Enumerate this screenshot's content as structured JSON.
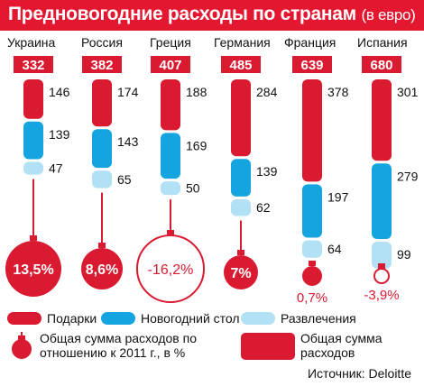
{
  "title": "Предновогодние расходы по странам",
  "subtitle": "(в евро)",
  "chart_data": {
    "type": "bar",
    "stacked": true,
    "categories": [
      "Украина",
      "Россия",
      "Греция",
      "Германия",
      "Франция",
      "Испания"
    ],
    "totals": [
      332,
      382,
      407,
      485,
      639,
      680
    ],
    "series": [
      {
        "name": "Подарки",
        "color": "#d91a30",
        "values": [
          146,
          174,
          188,
          284,
          378,
          301
        ]
      },
      {
        "name": "Новогодний стол",
        "color": "#14a5e0",
        "values": [
          139,
          143,
          169,
          139,
          197,
          279
        ]
      },
      {
        "name": "Развлечения",
        "color": "#b2e0f5",
        "values": [
          47,
          65,
          50,
          62,
          64,
          99
        ]
      }
    ],
    "change_vs_2011": {
      "values": [
        13.5,
        8.6,
        -16.2,
        7.0,
        0.7,
        -3.9
      ],
      "labels": [
        "13,5%",
        "8,6%",
        "-16,2%",
        "7%",
        "0,7%",
        "-3,9%"
      ]
    }
  },
  "legend": {
    "gifts": "Подарки",
    "table": "Новогодний стол",
    "fun": "Развлечения",
    "change": "Общая сумма расходов по отношению к 2011 г., в %",
    "total": "Общая сумма расходов"
  },
  "source": "Источник: Deloitte"
}
